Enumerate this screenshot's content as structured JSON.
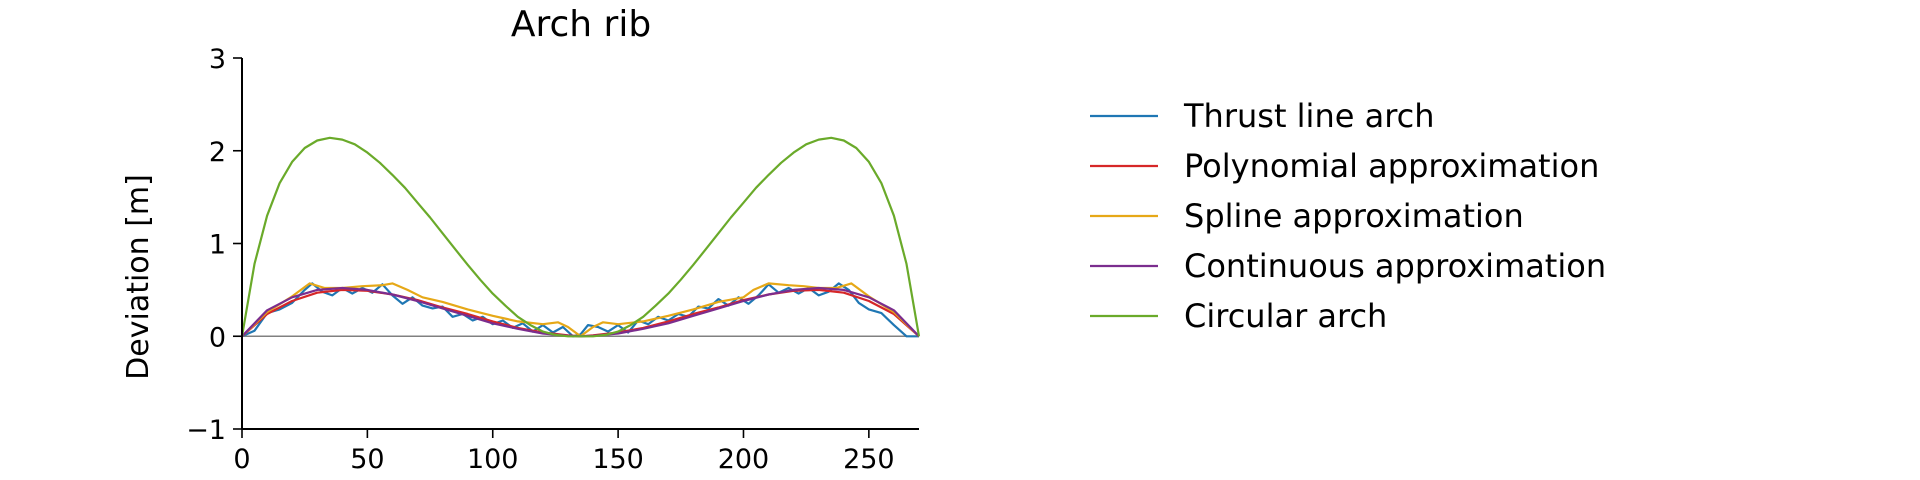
{
  "chart_data": {
    "type": "line",
    "title": "Arch rib",
    "xlabel": "",
    "ylabel": "Deviation [m]",
    "xlim": [
      0,
      270
    ],
    "ylim": [
      -1,
      3
    ],
    "xticks": [
      0,
      50,
      100,
      150,
      200,
      250
    ],
    "yticks": [
      -1,
      0,
      1,
      2,
      3
    ],
    "ytick_labels": [
      "−1",
      "0",
      "1",
      "2",
      "3"
    ],
    "baseline_y": 0,
    "grid": false,
    "legend_position": "right",
    "series": [
      {
        "name": "Thrust line arch",
        "color": "#1f77b4",
        "x": [
          0,
          5,
          10,
          15,
          20,
          25,
          28,
          32,
          36,
          40,
          44,
          48,
          52,
          56,
          60,
          64,
          68,
          72,
          76,
          80,
          84,
          88,
          92,
          96,
          100,
          104,
          108,
          112,
          116,
          120,
          124,
          128,
          132,
          135,
          138,
          142,
          146,
          150,
          154,
          158,
          162,
          166,
          170,
          174,
          178,
          182,
          186,
          190,
          194,
          198,
          202,
          206,
          210,
          214,
          218,
          222,
          226,
          230,
          234,
          238,
          242,
          246,
          250,
          255,
          260,
          265,
          270
        ],
        "y": [
          0.0,
          0.06,
          0.25,
          0.29,
          0.36,
          0.5,
          0.57,
          0.48,
          0.44,
          0.52,
          0.46,
          0.52,
          0.47,
          0.56,
          0.44,
          0.35,
          0.42,
          0.33,
          0.3,
          0.32,
          0.21,
          0.24,
          0.17,
          0.21,
          0.13,
          0.17,
          0.09,
          0.14,
          0.05,
          0.12,
          0.04,
          0.1,
          0.0,
          0.02,
          0.12,
          0.1,
          0.05,
          0.12,
          0.04,
          0.17,
          0.13,
          0.21,
          0.17,
          0.24,
          0.21,
          0.32,
          0.3,
          0.4,
          0.33,
          0.42,
          0.35,
          0.44,
          0.56,
          0.47,
          0.52,
          0.46,
          0.52,
          0.44,
          0.48,
          0.57,
          0.5,
          0.36,
          0.29,
          0.25,
          0.12,
          0.0,
          0.0
        ]
      },
      {
        "name": "Polynomial approximation",
        "color": "#d62728",
        "x": [
          0,
          10,
          20,
          30,
          40,
          50,
          60,
          70,
          80,
          90,
          100,
          110,
          120,
          130,
          135,
          140,
          150,
          160,
          170,
          180,
          190,
          200,
          210,
          220,
          230,
          240,
          250,
          260,
          270
        ],
        "y": [
          0.0,
          0.24,
          0.38,
          0.47,
          0.5,
          0.49,
          0.45,
          0.39,
          0.31,
          0.24,
          0.16,
          0.09,
          0.04,
          0.01,
          0.0,
          0.01,
          0.04,
          0.09,
          0.16,
          0.24,
          0.31,
          0.39,
          0.45,
          0.49,
          0.5,
          0.47,
          0.38,
          0.24,
          0.0
        ]
      },
      {
        "name": "Spline approximation",
        "color": "#e6a817",
        "x": [
          0,
          10,
          20,
          27,
          33,
          40,
          48,
          56,
          60,
          66,
          72,
          80,
          90,
          100,
          110,
          120,
          126,
          130,
          135,
          140,
          144,
          150,
          160,
          170,
          180,
          190,
          200,
          204,
          210,
          218,
          224,
          230,
          237,
          243,
          250,
          260,
          270
        ],
        "y": [
          0.0,
          0.26,
          0.43,
          0.57,
          0.52,
          0.52,
          0.54,
          0.55,
          0.57,
          0.5,
          0.42,
          0.37,
          0.29,
          0.22,
          0.16,
          0.13,
          0.15,
          0.1,
          0.0,
          0.1,
          0.15,
          0.13,
          0.16,
          0.22,
          0.29,
          0.37,
          0.42,
          0.5,
          0.57,
          0.55,
          0.54,
          0.52,
          0.52,
          0.57,
          0.43,
          0.26,
          0.0
        ]
      },
      {
        "name": "Continuous approximation",
        "color": "#7b2d8e",
        "x": [
          0,
          10,
          20,
          30,
          40,
          50,
          60,
          70,
          80,
          90,
          100,
          110,
          120,
          130,
          135,
          140,
          150,
          160,
          170,
          180,
          190,
          200,
          210,
          220,
          230,
          240,
          250,
          260,
          270
        ],
        "y": [
          0.0,
          0.28,
          0.42,
          0.5,
          0.52,
          0.5,
          0.45,
          0.38,
          0.3,
          0.22,
          0.14,
          0.08,
          0.03,
          0.005,
          0.0,
          0.005,
          0.03,
          0.08,
          0.14,
          0.22,
          0.3,
          0.38,
          0.45,
          0.5,
          0.52,
          0.5,
          0.42,
          0.28,
          0.0
        ]
      },
      {
        "name": "Circular arch",
        "color": "#6aaa2a",
        "x": [
          0,
          5,
          10,
          15,
          20,
          25,
          30,
          35,
          40,
          45,
          50,
          55,
          60,
          65,
          70,
          75,
          80,
          85,
          90,
          95,
          100,
          105,
          110,
          115,
          120,
          125,
          130,
          135,
          140,
          145,
          150,
          155,
          160,
          165,
          170,
          175,
          180,
          185,
          190,
          195,
          200,
          205,
          210,
          215,
          220,
          225,
          230,
          235,
          240,
          245,
          250,
          255,
          260,
          265,
          270
        ],
        "y": [
          0.0,
          0.78,
          1.3,
          1.65,
          1.88,
          2.03,
          2.11,
          2.14,
          2.12,
          2.07,
          1.98,
          1.87,
          1.74,
          1.6,
          1.44,
          1.28,
          1.11,
          0.94,
          0.77,
          0.61,
          0.46,
          0.33,
          0.21,
          0.12,
          0.05,
          0.015,
          0.0,
          0.0,
          0.0,
          0.015,
          0.05,
          0.12,
          0.21,
          0.33,
          0.46,
          0.61,
          0.77,
          0.94,
          1.11,
          1.28,
          1.44,
          1.6,
          1.74,
          1.87,
          1.98,
          2.07,
          2.12,
          2.14,
          2.11,
          2.03,
          1.88,
          1.65,
          1.3,
          0.78,
          0.0
        ]
      }
    ]
  }
}
